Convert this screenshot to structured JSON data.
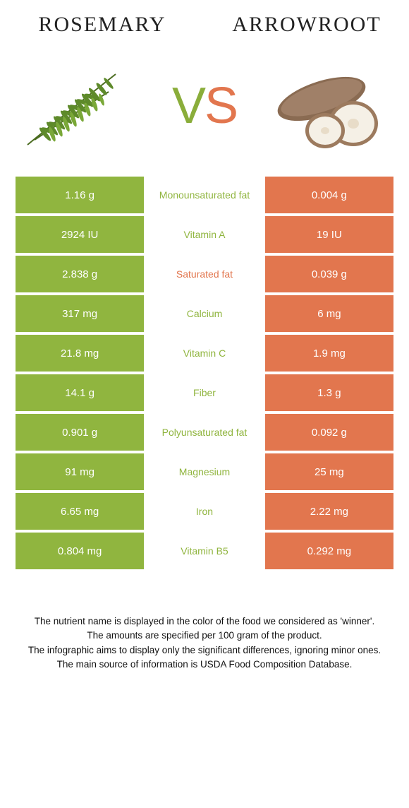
{
  "colors": {
    "left_bg": "#90b53f",
    "right_bg": "#e2764e",
    "left_text": "#90b53f",
    "right_text": "#e2764e",
    "cell_text": "#ffffff",
    "page_bg": "#ffffff",
    "heading_text": "#222222",
    "footer_text": "#111111"
  },
  "header": {
    "left": "ROSEMARY",
    "right": "ARROWROOT"
  },
  "vs": {
    "v": "V",
    "s": "S"
  },
  "rows": [
    {
      "left": "1.16 g",
      "mid": "Monounsaturated fat",
      "right": "0.004 g",
      "winner": "left"
    },
    {
      "left": "2924 IU",
      "mid": "Vitamin A",
      "right": "19 IU",
      "winner": "left"
    },
    {
      "left": "2.838 g",
      "mid": "Saturated fat",
      "right": "0.039 g",
      "winner": "right"
    },
    {
      "left": "317 mg",
      "mid": "Calcium",
      "right": "6 mg",
      "winner": "left"
    },
    {
      "left": "21.8 mg",
      "mid": "Vitamin C",
      "right": "1.9 mg",
      "winner": "left"
    },
    {
      "left": "14.1 g",
      "mid": "Fiber",
      "right": "1.3 g",
      "winner": "left"
    },
    {
      "left": "0.901 g",
      "mid": "Polyunsaturated fat",
      "right": "0.092 g",
      "winner": "left"
    },
    {
      "left": "91 mg",
      "mid": "Magnesium",
      "right": "25 mg",
      "winner": "left"
    },
    {
      "left": "6.65 mg",
      "mid": "Iron",
      "right": "2.22 mg",
      "winner": "left"
    },
    {
      "left": "0.804 mg",
      "mid": "Vitamin B5",
      "right": "0.292 mg",
      "winner": "left"
    }
  ],
  "footer": {
    "line1": "The nutrient name is displayed in the color of the food we considered as 'winner'.",
    "line2": "The amounts are specified per 100 gram of the product.",
    "line3": "The infographic aims to display only the significant differences, ignoring minor ones.",
    "line4": "The main source of information is USDA Food Composition Database."
  }
}
